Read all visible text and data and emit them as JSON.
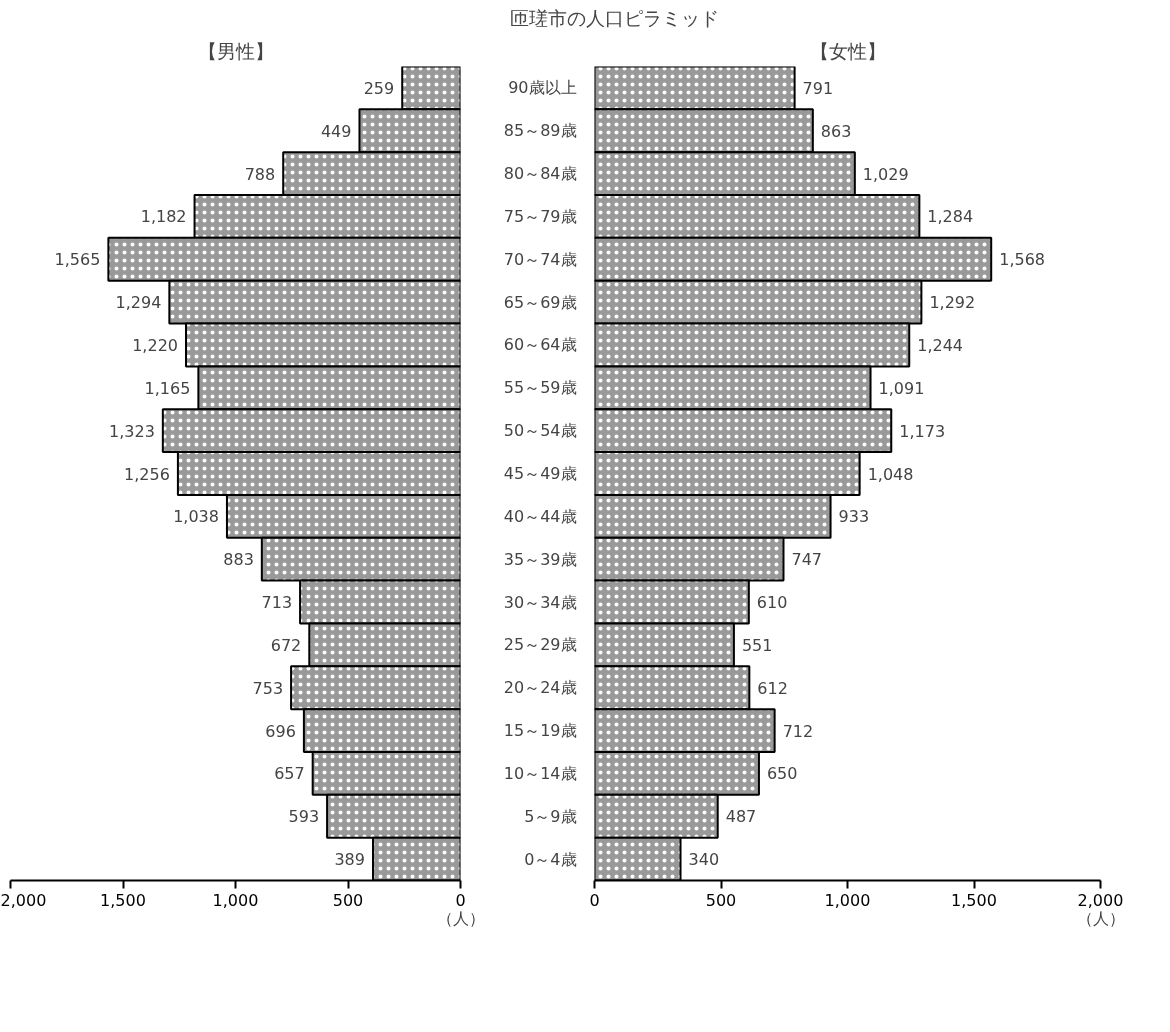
{
  "chart_data": [
    {
      "type": "bar",
      "orientation": "horizontal",
      "subtitle": "【男性】",
      "xlabel": "（人）",
      "categories": [
        null,
        null,
        null,
        null,
        null,
        null,
        null,
        null,
        null,
        null,
        null,
        null,
        null,
        null,
        null,
        null,
        null,
        null,
        null
      ],
      "values": [
        259,
        449,
        788,
        1182,
        1565,
        1294,
        1220,
        1165,
        1323,
        1256,
        1038,
        883,
        713,
        672,
        753,
        696,
        657,
        593,
        389
      ],
      "value_labels": [
        "259",
        "449",
        "788",
        "1,182",
        "1,565",
        "1,294",
        "1,220",
        "1,165",
        "1,323",
        "1,256",
        "1,038",
        "883",
        "713",
        "672",
        "753",
        "696",
        "657",
        "593",
        "389"
      ],
      "color": "#999999",
      "xlim": [
        2000,
        0
      ],
      "xticks": [
        {
          "value": 2000,
          "label": "2,000"
        },
        {
          "value": 1500,
          "label": "1,500"
        },
        {
          "value": 1000,
          "label": "1,000"
        },
        500,
        0
      ],
      "tick_labels": "x",
      "grid": false
    },
    {
      "type": "bar",
      "orientation": "horizontal",
      "title": "匝瑳市の人口ピラミッド",
      "subtitle": "【女性】",
      "xlabel": "（人）",
      "categories": [
        "90歳以上",
        "85～89歳",
        "80～84歳",
        "75～79歳",
        "70～74歳",
        "65～69歳",
        "60～64歳",
        "55～59歳",
        "50～54歳",
        "45～49歳",
        "40～44歳",
        "35～39歳",
        "30～34歳",
        "25～29歳",
        "20～24歳",
        "15～19歳",
        "10～14歳",
        "5～9歳",
        "0～4歳"
      ],
      "values": [
        791,
        863,
        1029,
        1284,
        1568,
        1292,
        1244,
        1091,
        1173,
        1048,
        933,
        747,
        610,
        551,
        612,
        712,
        650,
        487,
        340
      ],
      "value_labels": [
        "791",
        "863",
        "1,029",
        "1,284",
        "1,568",
        "1,292",
        "1,244",
        "1,091",
        "1,173",
        "1,048",
        "933",
        "747",
        "610",
        "551",
        "612",
        "712",
        "650",
        "487",
        "340"
      ],
      "color": "#999999",
      "xlim": [
        0,
        2000
      ],
      "xticks": [
        0,
        500,
        {
          "value": 1000,
          "label": "1,000"
        },
        {
          "value": 1500,
          "label": "1,500"
        },
        {
          "value": 2000,
          "label": "2,000"
        }
      ],
      "grid": false
    }
  ]
}
